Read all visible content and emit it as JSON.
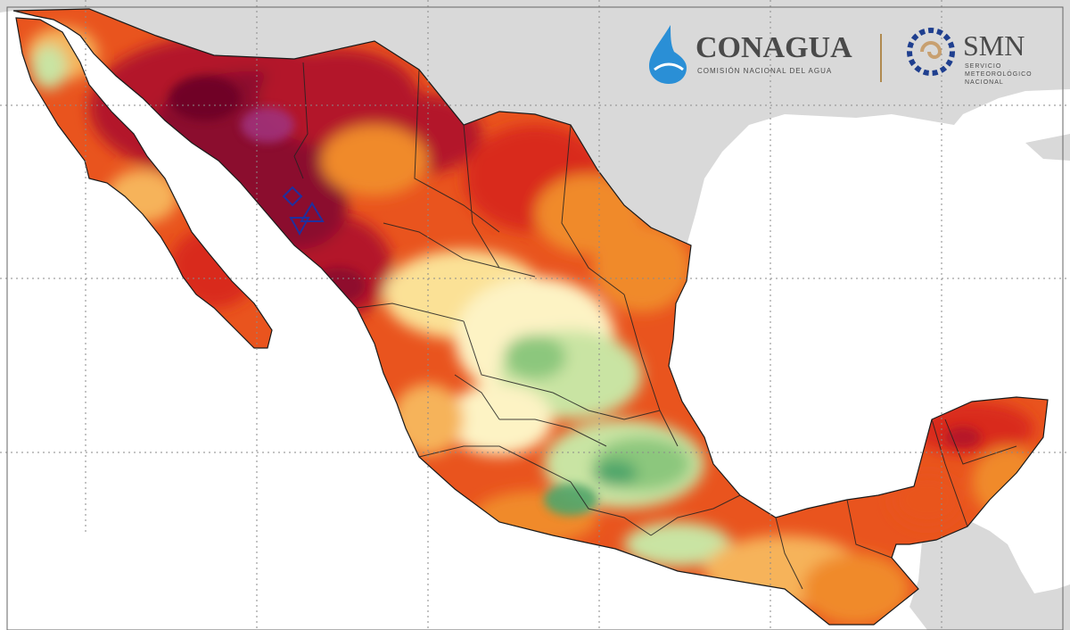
{
  "logos": {
    "conagua": {
      "name": "CONAGUA",
      "subtitle": "COMISIÓN NACIONAL DEL AGUA"
    },
    "smn": {
      "name": "SMN",
      "subtitle_lines": [
        "SERVICIO",
        "METEOROLÓGICO",
        "NACIONAL"
      ]
    }
  },
  "map": {
    "region": "Mexico",
    "land_color_other": "#d9d9d9",
    "ocean_color": "#ffffff",
    "border_color": "#1a1a1a",
    "gridline_color": "#8a8a8a",
    "palette": {
      "maroon": "#8b0a2e",
      "dark_red": "#b3122a",
      "red": "#d92b1f",
      "orange_red": "#e9541e",
      "orange": "#f08a2c",
      "light_orange": "#f6b35a",
      "yellow": "#fbe196",
      "pale_yellow": "#fdf3c4",
      "light_green": "#c9e4a3",
      "green": "#8cc77d",
      "dark_green": "#4fa66a"
    },
    "markers": [
      {
        "shape": "diamond",
        "color": "#1f2f9e"
      },
      {
        "shape": "triangle-up",
        "color": "#1f2f9e"
      },
      {
        "shape": "triangle-down",
        "color": "#1f2f9e"
      }
    ]
  }
}
